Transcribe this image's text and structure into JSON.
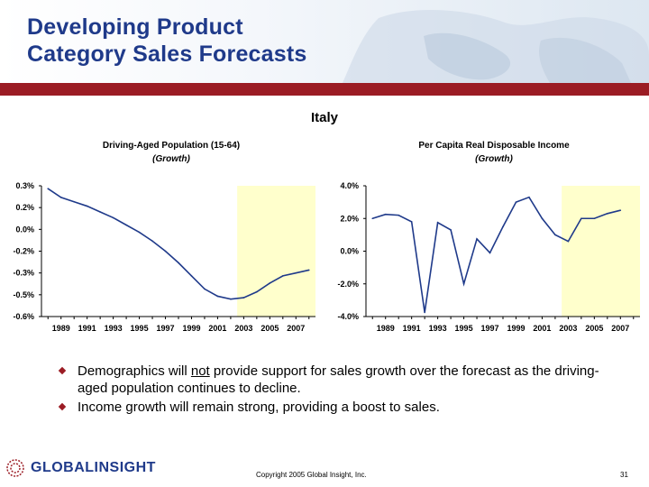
{
  "header": {
    "title_line1": "Developing Product",
    "title_line2": "Category Sales Forecasts",
    "accent_color": "#9b1c24",
    "title_color": "#1f3a8a"
  },
  "country": "Italy",
  "chart_data": [
    {
      "type": "line",
      "title": "Driving-Aged Population (15-64)",
      "subtitle": "(Growth)",
      "x": [
        1988,
        1989,
        1990,
        1991,
        1992,
        1993,
        1994,
        1995,
        1996,
        1997,
        1998,
        1999,
        2000,
        2001,
        2002,
        2003,
        2004,
        2005,
        2006,
        2007,
        2008
      ],
      "x_tick_labels": [
        "1989",
        "1991",
        "1993",
        "1995",
        "1997",
        "1999",
        "2001",
        "2003",
        "2005",
        "2007"
      ],
      "y_tick_labels": [
        "0.3%",
        "0.2%",
        "0.0%",
        "-0.2%",
        "-0.3%",
        "-0.5%",
        "-0.6%"
      ],
      "ylim": [
        -0.6,
        0.3
      ],
      "series": [
        {
          "values": [
            0.28,
            0.22,
            0.19,
            0.16,
            0.12,
            0.08,
            0.03,
            -0.02,
            -0.08,
            -0.15,
            -0.23,
            -0.32,
            -0.41,
            -0.46,
            -0.48,
            -0.47,
            -0.43,
            -0.37,
            -0.32,
            -0.3,
            -0.28
          ]
        }
      ],
      "forecast_shading": {
        "from": 2002.5,
        "to": 2008.5,
        "color": "#ffffcc"
      },
      "grid": false
    },
    {
      "type": "line",
      "title": "Per Capita Real Disposable Income",
      "subtitle": "(Growth)",
      "x": [
        1988,
        1989,
        1990,
        1991,
        1992,
        1993,
        1994,
        1995,
        1996,
        1997,
        1998,
        1999,
        2000,
        2001,
        2002,
        2003,
        2004,
        2005,
        2006,
        2007
      ],
      "x_tick_labels": [
        "1989",
        "1991",
        "1993",
        "1995",
        "1997",
        "1999",
        "2001",
        "2003",
        "2005",
        "2007"
      ],
      "y_tick_labels": [
        "4.0%",
        "2.0%",
        "0.0%",
        "-2.0%",
        "-4.0%"
      ],
      "ylim": [
        -4.0,
        4.0
      ],
      "series": [
        {
          "values": [
            2.0,
            2.25,
            2.2,
            1.8,
            -3.75,
            1.75,
            1.3,
            -2.0,
            0.75,
            -0.1,
            1.5,
            3.0,
            3.3,
            2.0,
            1.0,
            0.6,
            2.0,
            2.0,
            2.3,
            2.5
          ]
        }
      ],
      "forecast_shading": {
        "from": 2002.5,
        "to": 2008.5,
        "color": "#ffffcc"
      },
      "grid": false
    }
  ],
  "bullets": [
    {
      "before": "Demographics will ",
      "underlined": "not",
      "after": " provide support for sales growth over the forecast as the driving-aged population continues to decline."
    },
    {
      "before": "Income growth will remain strong, providing a boost to sales.",
      "underlined": "",
      "after": ""
    }
  ],
  "footer": {
    "logo_text": "GLOBALINSIGHT",
    "copyright": "Copyright 2005 Global Insight, Inc.",
    "page_number": "31"
  }
}
